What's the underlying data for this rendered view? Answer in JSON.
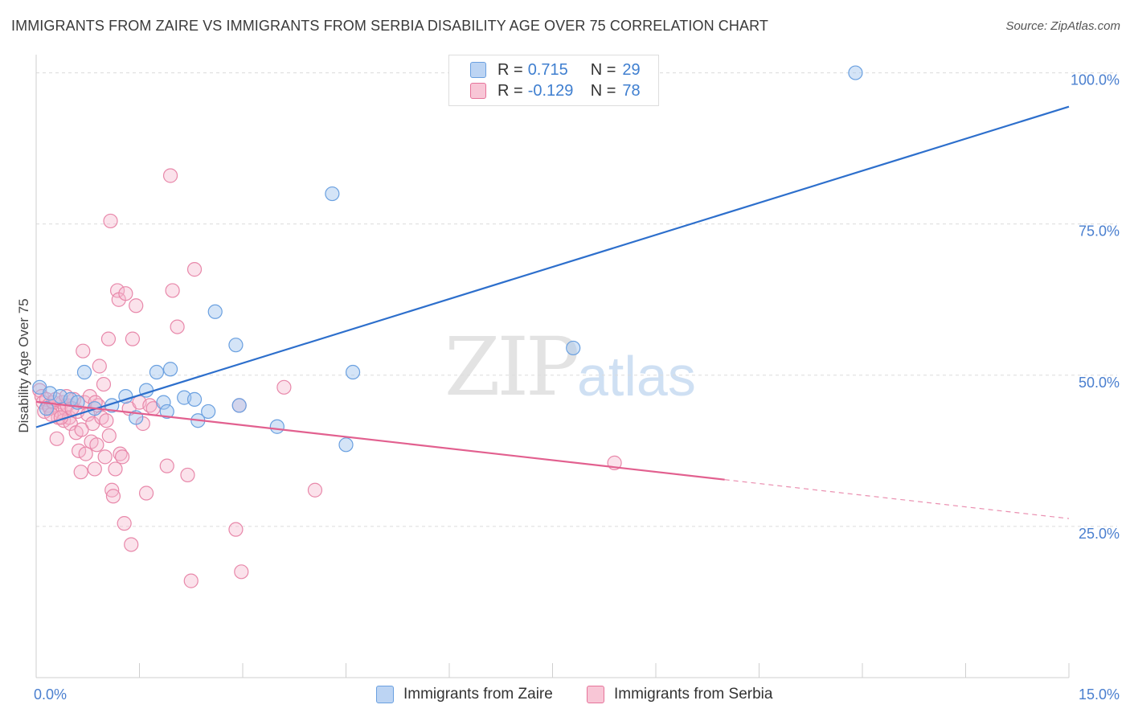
{
  "title": "IMMIGRANTS FROM ZAIRE VS IMMIGRANTS FROM SERBIA DISABILITY AGE OVER 75 CORRELATION CHART",
  "source": "Source: ZipAtlas.com",
  "watermark": {
    "zip": "ZIP",
    "atlas": "atlas"
  },
  "legend": {
    "r_label": "R =",
    "n_label": "N =",
    "rows": [
      {
        "r": "0.715",
        "n": "29",
        "color": "#6aa0e0",
        "fill": "#bcd4f3"
      },
      {
        "r": "-0.129",
        "n": "78",
        "color": "#e6739a",
        "fill": "#f8c6d6"
      }
    ]
  },
  "colors": {
    "zaire_line": "#2d6fcc",
    "serbia_line": "#e2608f",
    "axis_text": "#4a7fcf"
  },
  "chart_data": {
    "type": "scatter",
    "title": "IMMIGRANTS FROM ZAIRE VS IMMIGRANTS FROM SERBIA DISABILITY AGE OVER 75 CORRELATION CHART",
    "xlabel": "",
    "ylabel": "Disability Age Over 75",
    "xlim": [
      0,
      15
    ],
    "ylim": [
      0,
      103
    ],
    "x_tick_labels": [
      "0.0%",
      "15.0%"
    ],
    "y_ticks": [
      25,
      50,
      75,
      100
    ],
    "y_tick_labels": [
      "25.0%",
      "50.0%",
      "75.0%",
      "100.0%"
    ],
    "grid": true,
    "series": [
      {
        "name": "Immigrants from Zaire",
        "r": 0.715,
        "n": 29,
        "trend": {
          "x": [
            0,
            15
          ],
          "y": [
            41.4,
            94.4
          ],
          "dash_from_x": null
        },
        "points": [
          [
            0.05,
            48.0
          ],
          [
            0.2,
            47.0
          ],
          [
            0.35,
            46.5
          ],
          [
            0.5,
            46.0
          ],
          [
            0.6,
            45.5
          ],
          [
            0.7,
            50.5
          ],
          [
            0.85,
            44.5
          ],
          [
            1.1,
            45.0
          ],
          [
            1.3,
            46.5
          ],
          [
            1.45,
            43.0
          ],
          [
            1.6,
            47.5
          ],
          [
            1.75,
            50.5
          ],
          [
            1.85,
            45.5
          ],
          [
            1.9,
            44.0
          ],
          [
            1.95,
            51.0
          ],
          [
            2.15,
            46.3
          ],
          [
            2.3,
            46.0
          ],
          [
            2.35,
            42.5
          ],
          [
            2.5,
            44.0
          ],
          [
            2.6,
            60.5
          ],
          [
            2.9,
            55.0
          ],
          [
            2.95,
            45.0
          ],
          [
            3.5,
            41.5
          ],
          [
            4.3,
            80.0
          ],
          [
            4.5,
            38.5
          ],
          [
            4.6,
            50.5
          ],
          [
            7.8,
            54.5
          ],
          [
            11.9,
            100.0
          ],
          [
            0.15,
            44.5
          ]
        ]
      },
      {
        "name": "Immigrants from Serbia",
        "r": -0.129,
        "n": 78,
        "trend": {
          "x": [
            0,
            15
          ],
          "y": [
            45.6,
            26.3
          ],
          "dash_from_x": 10.0
        },
        "points": [
          [
            0.05,
            47.5
          ],
          [
            0.08,
            46.5
          ],
          [
            0.1,
            45.5
          ],
          [
            0.12,
            44.0
          ],
          [
            0.15,
            46.0
          ],
          [
            0.18,
            45.0
          ],
          [
            0.2,
            44.5
          ],
          [
            0.25,
            45.5
          ],
          [
            0.3,
            39.5
          ],
          [
            0.32,
            43.0
          ],
          [
            0.35,
            44.0
          ],
          [
            0.38,
            45.5
          ],
          [
            0.4,
            42.5
          ],
          [
            0.42,
            44.5
          ],
          [
            0.45,
            45.0
          ],
          [
            0.48,
            43.0
          ],
          [
            0.5,
            42.0
          ],
          [
            0.55,
            46.0
          ],
          [
            0.58,
            40.5
          ],
          [
            0.6,
            44.0
          ],
          [
            0.62,
            37.5
          ],
          [
            0.65,
            34.0
          ],
          [
            0.68,
            54.0
          ],
          [
            0.7,
            45.5
          ],
          [
            0.72,
            37.0
          ],
          [
            0.75,
            43.5
          ],
          [
            0.78,
            46.5
          ],
          [
            0.8,
            39.0
          ],
          [
            0.82,
            42.0
          ],
          [
            0.85,
            34.5
          ],
          [
            0.88,
            38.5
          ],
          [
            0.9,
            45.0
          ],
          [
            0.92,
            51.5
          ],
          [
            0.95,
            43.0
          ],
          [
            0.98,
            48.5
          ],
          [
            1.0,
            36.5
          ],
          [
            1.02,
            42.5
          ],
          [
            1.05,
            56.0
          ],
          [
            1.08,
            75.5
          ],
          [
            1.1,
            31.0
          ],
          [
            1.12,
            30.0
          ],
          [
            1.15,
            34.5
          ],
          [
            1.18,
            64.0
          ],
          [
            1.2,
            62.5
          ],
          [
            1.22,
            37.0
          ],
          [
            1.25,
            36.5
          ],
          [
            1.28,
            25.5
          ],
          [
            1.3,
            63.5
          ],
          [
            1.35,
            44.5
          ],
          [
            1.38,
            22.0
          ],
          [
            1.4,
            56.0
          ],
          [
            1.45,
            61.5
          ],
          [
            1.5,
            45.5
          ],
          [
            1.55,
            42.0
          ],
          [
            1.6,
            30.5
          ],
          [
            1.65,
            45.0
          ],
          [
            1.7,
            44.5
          ],
          [
            1.9,
            35.0
          ],
          [
            1.95,
            83.0
          ],
          [
            1.98,
            64.0
          ],
          [
            2.05,
            58.0
          ],
          [
            2.2,
            33.5
          ],
          [
            2.25,
            16.0
          ],
          [
            2.3,
            67.5
          ],
          [
            2.9,
            24.5
          ],
          [
            2.98,
            17.5
          ],
          [
            2.95,
            45.0
          ],
          [
            3.6,
            48.0
          ],
          [
            4.05,
            31.0
          ],
          [
            8.4,
            35.5
          ],
          [
            0.22,
            43.5
          ],
          [
            0.28,
            46.0
          ],
          [
            0.52,
            44.5
          ],
          [
            0.44,
            46.5
          ],
          [
            0.66,
            41.0
          ],
          [
            0.86,
            45.5
          ],
          [
            1.06,
            40.0
          ],
          [
            0.36,
            43.0
          ]
        ]
      }
    ]
  },
  "bottom_legend": {
    "zaire": "Immigrants from Zaire",
    "serbia": "Immigrants from Serbia"
  }
}
